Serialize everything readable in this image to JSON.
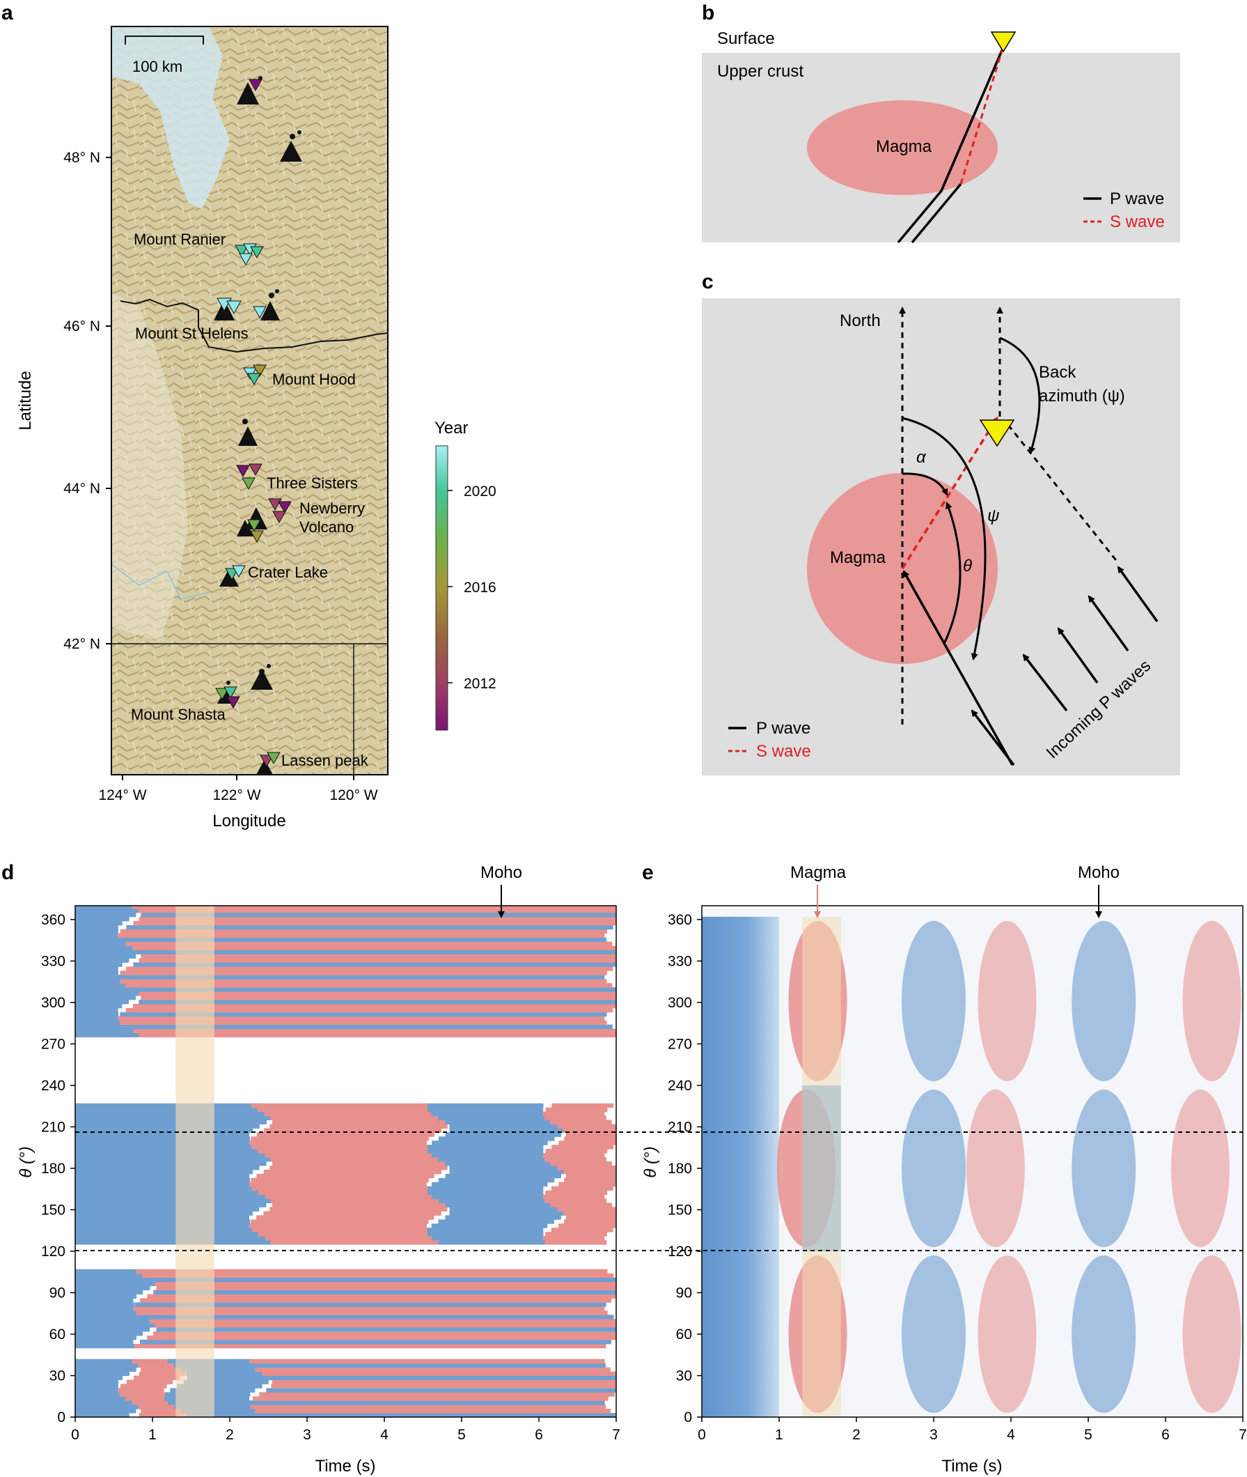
{
  "panel_labels": {
    "a": "a",
    "b": "b",
    "c": "c",
    "d": "d",
    "e": "e"
  },
  "panel_a": {
    "scale_bar": "100 km",
    "xlabel": "Longitude",
    "ylabel": "Latitude",
    "x_ticks": [
      "124° W",
      "122° W",
      "120° W"
    ],
    "y_ticks": [
      "48° N",
      "46° N",
      "44° N",
      "42° N"
    ],
    "volcanoes": [
      "Mount Ranier",
      "Mount St Helens",
      "Mount Hood",
      "Three Sisters",
      "Newberry",
      "Volcano",
      "Crater Lake",
      "Mount Shasta",
      "Lassen peak"
    ],
    "colorbar": {
      "title": "Year",
      "ticks": [
        "2020",
        "2016",
        "2012"
      ],
      "colors": [
        "#7a1571",
        "#a04064",
        "#9a6a3c",
        "#a5983a",
        "#6fb04c",
        "#45c497",
        "#8fe7ee"
      ]
    },
    "colors": {
      "land": "#d9cfa8",
      "relief": "#a08a5c",
      "water": "#cfe6ee"
    }
  },
  "panel_b": {
    "surface": "Surface",
    "upper_crust": "Upper crust",
    "magma": "Magma",
    "legend": {
      "p": "P wave",
      "s": "S wave"
    }
  },
  "panel_c": {
    "north": "North",
    "back_azimuth": "Back",
    "back_azimuth2": "azimuth (ψ)",
    "alpha": "α",
    "theta": "θ",
    "psi": "ψ",
    "magma": "Magma",
    "incoming": "Incoming P waves",
    "legend": {
      "p": "P wave",
      "s": "S wave"
    }
  },
  "panel_d": {
    "annotation_moho": "Moho",
    "xlabel": "Time (s)",
    "ylabel": "θ (°)",
    "x_ticks": [
      "0",
      "1",
      "2",
      "3",
      "4",
      "5",
      "6",
      "7"
    ],
    "y_ticks": [
      "0",
      "30",
      "60",
      "90",
      "120",
      "150",
      "180",
      "210",
      "240",
      "270",
      "300",
      "330",
      "360"
    ]
  },
  "panel_e": {
    "annotation_magma": "Magma",
    "annotation_moho": "Moho",
    "xlabel": "Time (s)",
    "ylabel": "θ (°)",
    "x_ticks": [
      "0",
      "1",
      "2",
      "3",
      "4",
      "5",
      "6",
      "7"
    ],
    "y_ticks": [
      "0",
      "30",
      "60",
      "90",
      "120",
      "150",
      "180",
      "210",
      "240",
      "270",
      "300",
      "330",
      "360"
    ]
  },
  "colors": {
    "positive": "#e8908e",
    "negative": "#6f9fd1",
    "highlight": "#f3dcb5",
    "gray_bg": "#dedede",
    "magma": "#e89896",
    "station": "#f5f000"
  },
  "chart_data": [
    {
      "type": "heatmap",
      "panel": "d",
      "xlabel": "Time (s)",
      "ylabel": "θ (°)",
      "xlim": [
        0,
        7
      ],
      "ylim": [
        0,
        370
      ],
      "dashed_lines_theta": [
        120,
        240
      ],
      "highlight_time": [
        1.3,
        1.8
      ],
      "annotations": [
        {
          "text": "Moho",
          "time": 5.5
        }
      ],
      "series": [
        {
          "name": "",
          "theta_band": [
            0,
            40
          ],
          "sign_by_time": [
            [
              0,
              0.7,
              "-"
            ],
            [
              0.7,
              1.3,
              "+"
            ],
            [
              1.3,
              2.4,
              "-"
            ],
            [
              2.4,
              7,
              "+/-"
            ]
          ]
        },
        {
          "name": "",
          "theta_band": [
            50,
            105
          ],
          "sign_by_time": [
            [
              0,
              0.9,
              "-"
            ],
            [
              0.9,
              7,
              "+/-"
            ]
          ]
        },
        {
          "name": "",
          "theta_band": [
            125,
            225
          ],
          "sign_by_time": [
            [
              0,
              2.4,
              "-"
            ],
            [
              2.4,
              4.7,
              "+"
            ],
            [
              4.7,
              6.2,
              "-"
            ],
            [
              6.2,
              7,
              "+"
            ]
          ]
        },
        {
          "name": "",
          "theta_band": [
            275,
            370
          ],
          "sign_by_time": [
            [
              0,
              0.7,
              "-"
            ],
            [
              0.7,
              7,
              "+/-"
            ]
          ]
        }
      ]
    },
    {
      "type": "heatmap",
      "panel": "e",
      "xlabel": "Time (s)",
      "ylabel": "θ (°)",
      "xlim": [
        0,
        7
      ],
      "ylim": [
        0,
        370
      ],
      "dashed_lines_theta": [
        120,
        240
      ],
      "highlight_time": [
        1.3,
        1.8
      ],
      "annotations": [
        {
          "text": "Magma",
          "time": 1.5
        },
        {
          "text": "Moho",
          "time": 5.2
        }
      ],
      "negative_peaks_time": [
        0.3,
        3.0,
        5.2
      ],
      "positive_peaks_time": [
        1.5,
        3.9,
        6.5
      ]
    }
  ]
}
